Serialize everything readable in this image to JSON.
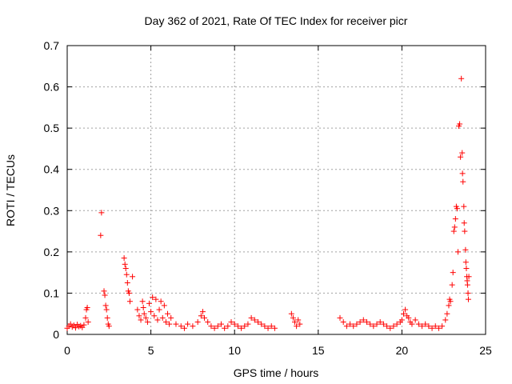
{
  "chart_data": {
    "type": "scatter",
    "title": "Day 362 of 2021, Rate Of TEC Index for receiver picr",
    "xlabel": "GPS time / hours",
    "ylabel": "ROTI / TECUs",
    "xlim": [
      0,
      25
    ],
    "ylim": [
      0,
      0.7
    ],
    "xticks": [
      "0",
      "5",
      "10",
      "15",
      "20",
      "25"
    ],
    "yticks": [
      "0",
      "0.1",
      "0.2",
      "0.3",
      "0.4",
      "0.5",
      "0.6",
      "0.7"
    ],
    "grid": true,
    "marker": "plus",
    "color": "#ff0000",
    "points": [
      [
        0.0,
        0.015
      ],
      [
        0.1,
        0.02
      ],
      [
        0.2,
        0.025
      ],
      [
        0.3,
        0.018
      ],
      [
        0.4,
        0.022
      ],
      [
        0.5,
        0.016
      ],
      [
        0.6,
        0.024
      ],
      [
        0.7,
        0.019
      ],
      [
        0.8,
        0.021
      ],
      [
        0.9,
        0.017
      ],
      [
        1.0,
        0.023
      ],
      [
        1.1,
        0.04
      ],
      [
        1.15,
        0.06
      ],
      [
        1.2,
        0.065
      ],
      [
        1.25,
        0.03
      ],
      [
        2.0,
        0.24
      ],
      [
        2.05,
        0.295
      ],
      [
        2.2,
        0.105
      ],
      [
        2.25,
        0.095
      ],
      [
        2.3,
        0.07
      ],
      [
        2.35,
        0.06
      ],
      [
        2.4,
        0.04
      ],
      [
        2.45,
        0.025
      ],
      [
        2.5,
        0.02
      ],
      [
        3.4,
        0.185
      ],
      [
        3.45,
        0.17
      ],
      [
        3.5,
        0.16
      ],
      [
        3.55,
        0.145
      ],
      [
        3.6,
        0.125
      ],
      [
        3.65,
        0.105
      ],
      [
        3.7,
        0.1
      ],
      [
        3.75,
        0.08
      ],
      [
        3.9,
        0.14
      ],
      [
        4.2,
        0.06
      ],
      [
        4.3,
        0.045
      ],
      [
        4.4,
        0.035
      ],
      [
        4.5,
        0.08
      ],
      [
        4.55,
        0.065
      ],
      [
        4.6,
        0.05
      ],
      [
        4.7,
        0.04
      ],
      [
        4.8,
        0.03
      ],
      [
        4.9,
        0.075
      ],
      [
        5.0,
        0.055
      ],
      [
        5.1,
        0.09
      ],
      [
        5.2,
        0.045
      ],
      [
        5.3,
        0.085
      ],
      [
        5.4,
        0.035
      ],
      [
        5.5,
        0.06
      ],
      [
        5.6,
        0.08
      ],
      [
        5.7,
        0.04
      ],
      [
        5.8,
        0.07
      ],
      [
        5.9,
        0.03
      ],
      [
        6.0,
        0.05
      ],
      [
        6.1,
        0.025
      ],
      [
        6.2,
        0.04
      ],
      [
        6.5,
        0.025
      ],
      [
        6.8,
        0.02
      ],
      [
        7.0,
        0.015
      ],
      [
        7.2,
        0.025
      ],
      [
        7.5,
        0.02
      ],
      [
        7.8,
        0.03
      ],
      [
        8.0,
        0.045
      ],
      [
        8.1,
        0.055
      ],
      [
        8.2,
        0.04
      ],
      [
        8.4,
        0.03
      ],
      [
        8.6,
        0.02
      ],
      [
        8.8,
        0.015
      ],
      [
        9.0,
        0.02
      ],
      [
        9.2,
        0.025
      ],
      [
        9.4,
        0.015
      ],
      [
        9.6,
        0.02
      ],
      [
        9.8,
        0.03
      ],
      [
        10.0,
        0.025
      ],
      [
        10.2,
        0.02
      ],
      [
        10.4,
        0.015
      ],
      [
        10.6,
        0.02
      ],
      [
        10.8,
        0.025
      ],
      [
        11.0,
        0.04
      ],
      [
        11.2,
        0.035
      ],
      [
        11.4,
        0.03
      ],
      [
        11.6,
        0.025
      ],
      [
        11.8,
        0.02
      ],
      [
        12.0,
        0.015
      ],
      [
        12.2,
        0.02
      ],
      [
        12.4,
        0.015
      ],
      [
        13.4,
        0.05
      ],
      [
        13.5,
        0.04
      ],
      [
        13.6,
        0.03
      ],
      [
        13.7,
        0.02
      ],
      [
        13.8,
        0.035
      ],
      [
        13.9,
        0.025
      ],
      [
        16.3,
        0.04
      ],
      [
        16.5,
        0.03
      ],
      [
        16.7,
        0.02
      ],
      [
        16.9,
        0.025
      ],
      [
        17.1,
        0.02
      ],
      [
        17.3,
        0.025
      ],
      [
        17.5,
        0.03
      ],
      [
        17.7,
        0.035
      ],
      [
        17.9,
        0.03
      ],
      [
        18.1,
        0.025
      ],
      [
        18.3,
        0.02
      ],
      [
        18.5,
        0.025
      ],
      [
        18.7,
        0.03
      ],
      [
        18.9,
        0.025
      ],
      [
        19.1,
        0.02
      ],
      [
        19.3,
        0.015
      ],
      [
        19.5,
        0.02
      ],
      [
        19.7,
        0.025
      ],
      [
        19.9,
        0.03
      ],
      [
        20.0,
        0.035
      ],
      [
        20.1,
        0.05
      ],
      [
        20.2,
        0.06
      ],
      [
        20.3,
        0.045
      ],
      [
        20.4,
        0.04
      ],
      [
        20.5,
        0.03
      ],
      [
        20.6,
        0.025
      ],
      [
        20.8,
        0.035
      ],
      [
        21.0,
        0.025
      ],
      [
        21.2,
        0.02
      ],
      [
        21.4,
        0.025
      ],
      [
        21.6,
        0.02
      ],
      [
        21.8,
        0.015
      ],
      [
        22.0,
        0.02
      ],
      [
        22.2,
        0.015
      ],
      [
        22.4,
        0.02
      ],
      [
        22.6,
        0.035
      ],
      [
        22.7,
        0.05
      ],
      [
        22.8,
        0.07
      ],
      [
        22.85,
        0.085
      ],
      [
        22.9,
        0.08
      ],
      [
        23.0,
        0.12
      ],
      [
        23.05,
        0.15
      ],
      [
        23.1,
        0.25
      ],
      [
        23.15,
        0.26
      ],
      [
        23.2,
        0.28
      ],
      [
        23.25,
        0.31
      ],
      [
        23.3,
        0.305
      ],
      [
        23.35,
        0.2
      ],
      [
        23.4,
        0.505
      ],
      [
        23.45,
        0.51
      ],
      [
        23.5,
        0.43
      ],
      [
        23.55,
        0.62
      ],
      [
        23.6,
        0.44
      ],
      [
        23.62,
        0.39
      ],
      [
        23.65,
        0.37
      ],
      [
        23.7,
        0.31
      ],
      [
        23.72,
        0.27
      ],
      [
        23.75,
        0.25
      ],
      [
        23.8,
        0.205
      ],
      [
        23.82,
        0.175
      ],
      [
        23.85,
        0.16
      ],
      [
        23.88,
        0.14
      ],
      [
        23.9,
        0.13
      ],
      [
        23.92,
        0.12
      ],
      [
        23.95,
        0.1
      ],
      [
        23.97,
        0.085
      ],
      [
        24.0,
        0.14
      ]
    ]
  }
}
